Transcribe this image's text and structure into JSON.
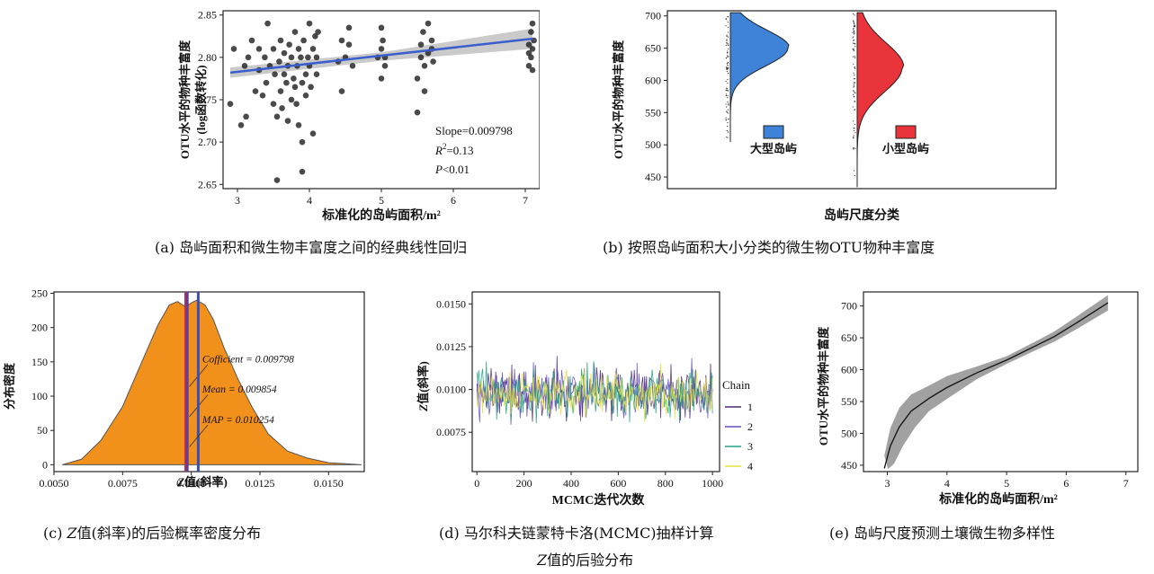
{
  "colors": {
    "points": "#2a2a2a",
    "fit_line": "#3a5fcd",
    "ci_band": "#bdbdbd",
    "violin_large": "#3f83d9",
    "violin_small": "#e8343a",
    "density_fill": "#f2901c",
    "vline_red": "#d42a3a",
    "vline_purple": "#5b3fa0",
    "vline_blue": "#3b4fb8",
    "chain_1": "#4b2a7a",
    "chain_2": "#6a4fbf",
    "chain_3": "#21a383",
    "chain_4": "#e6e13a",
    "curve": "#111111",
    "band": "#909090"
  },
  "captions": {
    "a": "(a) 岛屿面积和微生物丰富度之间的经典线性回归",
    "b": "(b) 按照岛屿面积大小分类的微生物OTU物种丰富度",
    "c_prefix": "(c) ",
    "c_italic": "Z",
    "c_suffix": "值(斜率)的后验概率密度分布",
    "d_line1": "(d) 马尔科夫链蒙特卡洛(MCMC)抽样计算",
    "d_italic": "Z",
    "d_line2_suffix": "值的后验分布",
    "e": "(e) 岛屿尺度预测土壤微生物多样性"
  },
  "chart_data": [
    {
      "id": "a",
      "type": "scatter",
      "xlabel": "标准化的岛屿面积/m²",
      "ylabel_line1": "OTU水平的物种丰富度",
      "ylabel_line2": "(log函数转化)",
      "xlim": [
        2.8,
        7.2
      ],
      "ylim": [
        2.645,
        2.855
      ],
      "xticks": [
        "3",
        "4",
        "5",
        "6",
        "7"
      ],
      "yticks": [
        "2.65",
        "2.70",
        "2.75",
        "2.80",
        "2.85"
      ],
      "fit": {
        "x": [
          2.9,
          7.1
        ],
        "y": [
          2.782,
          2.822
        ],
        "ci_halfwidth": [
          0.006,
          0.012
        ]
      },
      "annotation": {
        "slope": "Slope=0.009798",
        "r2_label": "R",
        "r2_sup": "2",
        "r2_value": "=0.13",
        "p_label": "P",
        "p_value": "<0.01"
      },
      "points": [
        [
          2.9,
          2.745
        ],
        [
          2.95,
          2.81
        ],
        [
          3.05,
          2.72
        ],
        [
          3.1,
          2.79
        ],
        [
          3.12,
          2.73
        ],
        [
          3.15,
          2.8
        ],
        [
          3.2,
          2.82
        ],
        [
          3.25,
          2.76
        ],
        [
          3.3,
          2.785
        ],
        [
          3.3,
          2.81
        ],
        [
          3.35,
          2.755
        ],
        [
          3.38,
          2.8
        ],
        [
          3.4,
          2.77
        ],
        [
          3.42,
          2.84
        ],
        [
          3.45,
          2.79
        ],
        [
          3.5,
          2.745
        ],
        [
          3.5,
          2.81
        ],
        [
          3.52,
          2.78
        ],
        [
          3.55,
          2.655
        ],
        [
          3.55,
          2.73
        ],
        [
          3.58,
          2.795
        ],
        [
          3.6,
          2.76
        ],
        [
          3.6,
          2.82
        ],
        [
          3.62,
          2.74
        ],
        [
          3.65,
          2.78
        ],
        [
          3.65,
          2.805
        ],
        [
          3.68,
          2.77
        ],
        [
          3.7,
          2.725
        ],
        [
          3.7,
          2.79
        ],
        [
          3.72,
          2.815
        ],
        [
          3.75,
          2.75
        ],
        [
          3.75,
          2.8
        ],
        [
          3.78,
          2.775
        ],
        [
          3.8,
          2.83
        ],
        [
          3.8,
          2.765
        ],
        [
          3.82,
          2.745
        ],
        [
          3.83,
          2.79
        ],
        [
          3.85,
          2.81
        ],
        [
          3.85,
          2.72
        ],
        [
          3.88,
          2.8
        ],
        [
          3.9,
          2.665
        ],
        [
          3.9,
          2.7
        ],
        [
          3.9,
          2.77
        ],
        [
          3.92,
          2.82
        ],
        [
          3.95,
          2.78
        ],
        [
          3.95,
          2.755
        ],
        [
          3.98,
          2.8
        ],
        [
          4.0,
          2.84
        ],
        [
          4.0,
          2.79
        ],
        [
          4.02,
          2.765
        ],
        [
          4.05,
          2.81
        ],
        [
          4.05,
          2.71
        ],
        [
          4.08,
          2.825
        ],
        [
          4.1,
          2.8
        ],
        [
          4.1,
          2.78
        ],
        [
          4.12,
          2.83
        ],
        [
          4.4,
          2.795
        ],
        [
          4.45,
          2.82
        ],
        [
          4.45,
          2.76
        ],
        [
          4.5,
          2.8
        ],
        [
          4.55,
          2.815
        ],
        [
          4.55,
          2.835
        ],
        [
          4.6,
          2.79
        ],
        [
          4.95,
          2.8
        ],
        [
          5.0,
          2.835
        ],
        [
          5.0,
          2.775
        ],
        [
          5.0,
          2.81
        ],
        [
          5.02,
          2.82
        ],
        [
          5.05,
          2.79
        ],
        [
          5.05,
          2.8
        ],
        [
          5.5,
          2.735
        ],
        [
          5.5,
          2.775
        ],
        [
          5.55,
          2.8
        ],
        [
          5.55,
          2.815
        ],
        [
          5.58,
          2.83
        ],
        [
          5.6,
          2.79
        ],
        [
          5.6,
          2.76
        ],
        [
          5.65,
          2.805
        ],
        [
          5.65,
          2.84
        ],
        [
          5.7,
          2.82
        ],
        [
          5.7,
          2.81
        ],
        [
          5.72,
          2.795
        ],
        [
          7.05,
          2.79
        ],
        [
          7.05,
          2.805
        ],
        [
          7.05,
          2.815
        ],
        [
          7.08,
          2.8
        ],
        [
          7.08,
          2.83
        ],
        [
          7.1,
          2.84
        ],
        [
          7.1,
          2.81
        ],
        [
          7.1,
          2.785
        ],
        [
          7.12,
          2.82
        ]
      ]
    },
    {
      "id": "b",
      "type": "violin",
      "ylabel": "OTU水平的物种丰富度",
      "xlabel": "岛屿尺度分类",
      "ylim": [
        432,
        708
      ],
      "yticks": [
        "450",
        "500",
        "550",
        "600",
        "650",
        "700"
      ],
      "groups": [
        {
          "name": "大型岛屿",
          "range": [
            505,
            705
          ],
          "peak": 650
        },
        {
          "name": "小型岛屿",
          "range": [
            435,
            705
          ],
          "peak": 620
        }
      ]
    },
    {
      "id": "c",
      "type": "area",
      "xlabel_italic": "Z",
      "xlabel_rest": "值(斜率)",
      "ylabel": "分布密度",
      "xlim": [
        0.005,
        0.0163
      ],
      "ylim": [
        -10,
        252
      ],
      "xticks": [
        "0.0050",
        "0.0075",
        "0.0100",
        "0.0125",
        "0.0150"
      ],
      "yticks": [
        "0",
        "50",
        "100",
        "150",
        "200",
        "250"
      ],
      "density": {
        "x": [
          0.0053,
          0.006,
          0.0067,
          0.0075,
          0.0082,
          0.0088,
          0.0092,
          0.0095,
          0.0098,
          0.01,
          0.0102,
          0.0105,
          0.0108,
          0.0112,
          0.0117,
          0.0122,
          0.0128,
          0.0135,
          0.0142,
          0.015,
          0.0158,
          0.0162
        ],
        "y": [
          0,
          8,
          35,
          85,
          150,
          205,
          233,
          238,
          230,
          236,
          240,
          233,
          212,
          170,
          125,
          85,
          45,
          20,
          10,
          3,
          1,
          0
        ]
      },
      "lines": [
        {
          "label": "Cofficient = 0.009798",
          "x": 0.009798
        },
        {
          "label": "Mean = 0.009854",
          "x": 0.009854
        },
        {
          "label": "MAP = 0.010254",
          "x": 0.010254
        }
      ]
    },
    {
      "id": "d",
      "type": "line",
      "xlabel": "MCMC迭代次数",
      "ylabel_italic": "Z",
      "ylabel_rest": "值(斜率)",
      "xlim": [
        -20,
        1030
      ],
      "ylim": [
        0.0052,
        0.0157
      ],
      "xticks": [
        "0",
        "200",
        "400",
        "600",
        "800",
        "1000"
      ],
      "yticks": [
        "0.0075",
        "0.0100",
        "0.0125",
        "0.0150"
      ],
      "legend_title": "Chain",
      "series": [
        {
          "name": "1",
          "mean": 0.0098,
          "spread": 0.0014
        },
        {
          "name": "2",
          "mean": 0.0098,
          "spread": 0.0014
        },
        {
          "name": "3",
          "mean": 0.0098,
          "spread": 0.0014
        },
        {
          "name": "4",
          "mean": 0.0098,
          "spread": 0.0012
        }
      ]
    },
    {
      "id": "e",
      "type": "line",
      "xlabel": "标准化的岛屿面积/m²",
      "ylabel": "OTU水平的物种丰富度",
      "xlim": [
        2.6,
        7.2
      ],
      "ylim": [
        440,
        722
      ],
      "xticks": [
        "3",
        "4",
        "5",
        "6",
        "7"
      ],
      "yticks": [
        "450",
        "500",
        "550",
        "600",
        "650",
        "700"
      ],
      "curve": {
        "x": [
          2.95,
          3.05,
          3.2,
          3.4,
          3.7,
          4.0,
          4.5,
          5.0,
          5.5,
          5.8,
          6.2,
          6.7
        ],
        "y": [
          445,
          480,
          510,
          535,
          555,
          572,
          595,
          615,
          638,
          652,
          675,
          705
        ]
      },
      "band_halfwidth": [
        20,
        28,
        30,
        26,
        20,
        18,
        10,
        6,
        7,
        8,
        10,
        12
      ]
    }
  ]
}
